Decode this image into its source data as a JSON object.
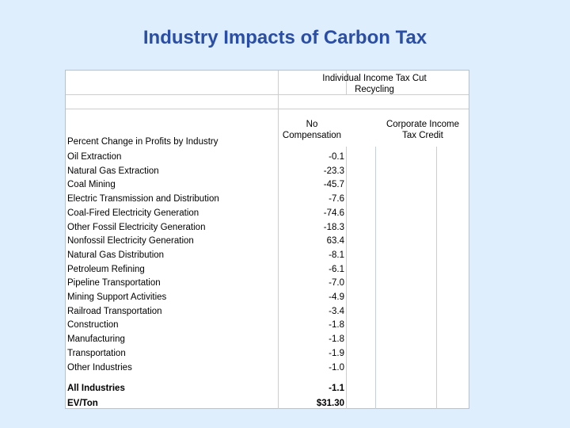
{
  "title": "Industry Impacts of Carbon Tax",
  "table": {
    "group_header": "Individual Income Tax Cut Recycling",
    "col_no_comp": "No Compensation",
    "col_corp": "Corporate Income Tax Credit",
    "section_label": "Percent Change in Profits by Industry",
    "rows": [
      {
        "industry": "Oil Extraction",
        "value": "-0.1"
      },
      {
        "industry": "Natural Gas Extraction",
        "value": "-23.3"
      },
      {
        "industry": "Coal Mining",
        "value": "-45.7"
      },
      {
        "industry": "Electric Transmission and Distribution",
        "value": "-7.6"
      },
      {
        "industry": "Coal-Fired Electricity Generation",
        "value": "-74.6"
      },
      {
        "industry": "Other Fossil Electricity Generation",
        "value": "-18.3"
      },
      {
        "industry": "Nonfossil Electricity Generation",
        "value": "63.4"
      },
      {
        "industry": "Natural Gas Distribution",
        "value": "-8.1"
      },
      {
        "industry": "Petroleum Refining",
        "value": "-6.1"
      },
      {
        "industry": "Pipeline Transportation",
        "value": "-7.0"
      },
      {
        "industry": "Mining Support Activities",
        "value": "-4.9"
      },
      {
        "industry": "Railroad Transportation",
        "value": "-3.4"
      },
      {
        "industry": "Construction",
        "value": "-1.8"
      },
      {
        "industry": "Manufacturing",
        "value": "-1.8"
      },
      {
        "industry": "Transportation",
        "value": "-1.9"
      },
      {
        "industry": "Other Industries",
        "value": "-1.0"
      }
    ],
    "all_industries": {
      "label": "All Industries",
      "value": "-1.1"
    },
    "ev_ton": {
      "label": "EV/Ton",
      "value": "$31.30"
    }
  }
}
